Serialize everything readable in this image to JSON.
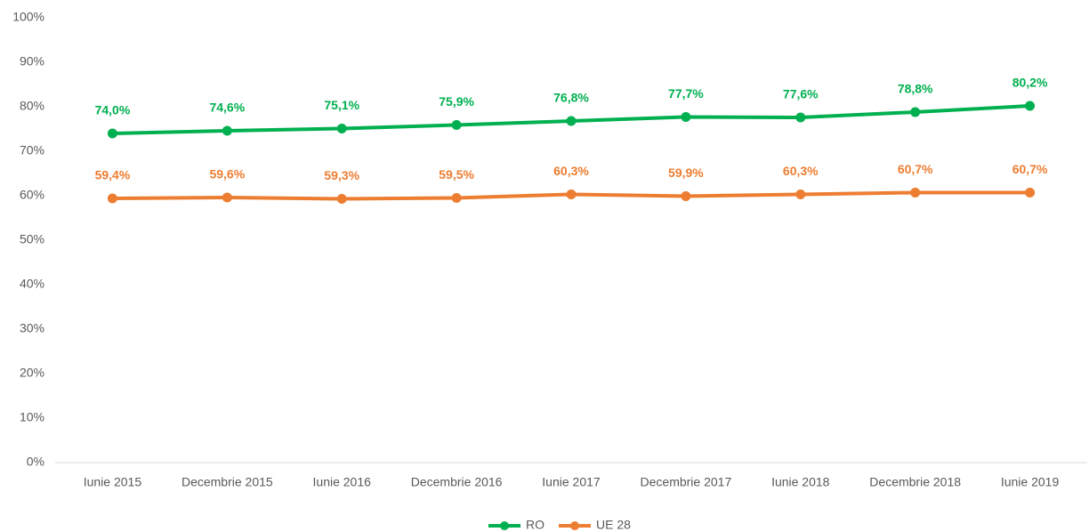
{
  "chart_data": {
    "type": "line",
    "categories": [
      "Iunie 2015",
      "Decembrie 2015",
      "Iunie 2016",
      "Decembrie 2016",
      "Iunie 2017",
      "Decembrie 2017",
      "Iunie 2018",
      "Decembrie 2018",
      "Iunie 2019"
    ],
    "series": [
      {
        "name": "RO",
        "color": "#00b050",
        "values": [
          74.0,
          74.6,
          75.1,
          75.9,
          76.8,
          77.7,
          77.6,
          78.8,
          80.2
        ],
        "value_labels": [
          "74,0%",
          "74,6%",
          "75,1%",
          "75,9%",
          "76,8%",
          "77,7%",
          "77,6%",
          "78,8%",
          "80,2%"
        ]
      },
      {
        "name": "UE 28",
        "color": "#ed7d31",
        "values": [
          59.4,
          59.6,
          59.3,
          59.5,
          60.3,
          59.9,
          60.3,
          60.7,
          60.7
        ],
        "value_labels": [
          "59,4%",
          "59,6%",
          "59,3%",
          "59,5%",
          "60,3%",
          "59,9%",
          "60,3%",
          "60,7%",
          "60,7%"
        ]
      }
    ],
    "ylim": [
      0,
      100
    ],
    "yticks": [
      {
        "value": 0,
        "label": "0%"
      },
      {
        "value": 10,
        "label": "10%"
      },
      {
        "value": 20,
        "label": "20%"
      },
      {
        "value": 30,
        "label": "30%"
      },
      {
        "value": 40,
        "label": "40%"
      },
      {
        "value": 50,
        "label": "50%"
      },
      {
        "value": 60,
        "label": "60%"
      },
      {
        "value": 70,
        "label": "70%"
      },
      {
        "value": 80,
        "label": "80%"
      },
      {
        "value": 90,
        "label": "90%"
      },
      {
        "value": 100,
        "label": "100%"
      }
    ],
    "grid": false,
    "legend": "bottom"
  }
}
